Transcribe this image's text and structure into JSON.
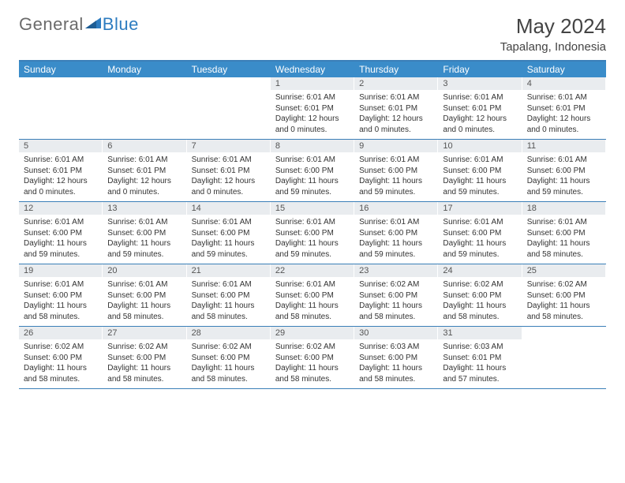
{
  "logo": {
    "text1": "General",
    "text2": "Blue"
  },
  "title": "May 2024",
  "location": "Tapalang, Indonesia",
  "colors": {
    "header_bg": "#3a8cc9",
    "border": "#3b7fb8",
    "daynum_bg": "#e9ecef",
    "text": "#333333",
    "logo_gray": "#6b6b6b",
    "logo_blue": "#2d7cc0"
  },
  "daynames": [
    "Sunday",
    "Monday",
    "Tuesday",
    "Wednesday",
    "Thursday",
    "Friday",
    "Saturday"
  ],
  "weeks": [
    [
      {
        "n": "",
        "empty": true
      },
      {
        "n": "",
        "empty": true
      },
      {
        "n": "",
        "empty": true
      },
      {
        "n": "1",
        "sr": "Sunrise: 6:01 AM",
        "ss": "Sunset: 6:01 PM",
        "dl": "Daylight: 12 hours and 0 minutes."
      },
      {
        "n": "2",
        "sr": "Sunrise: 6:01 AM",
        "ss": "Sunset: 6:01 PM",
        "dl": "Daylight: 12 hours and 0 minutes."
      },
      {
        "n": "3",
        "sr": "Sunrise: 6:01 AM",
        "ss": "Sunset: 6:01 PM",
        "dl": "Daylight: 12 hours and 0 minutes."
      },
      {
        "n": "4",
        "sr": "Sunrise: 6:01 AM",
        "ss": "Sunset: 6:01 PM",
        "dl": "Daylight: 12 hours and 0 minutes."
      }
    ],
    [
      {
        "n": "5",
        "sr": "Sunrise: 6:01 AM",
        "ss": "Sunset: 6:01 PM",
        "dl": "Daylight: 12 hours and 0 minutes."
      },
      {
        "n": "6",
        "sr": "Sunrise: 6:01 AM",
        "ss": "Sunset: 6:01 PM",
        "dl": "Daylight: 12 hours and 0 minutes."
      },
      {
        "n": "7",
        "sr": "Sunrise: 6:01 AM",
        "ss": "Sunset: 6:01 PM",
        "dl": "Daylight: 12 hours and 0 minutes."
      },
      {
        "n": "8",
        "sr": "Sunrise: 6:01 AM",
        "ss": "Sunset: 6:00 PM",
        "dl": "Daylight: 11 hours and 59 minutes."
      },
      {
        "n": "9",
        "sr": "Sunrise: 6:01 AM",
        "ss": "Sunset: 6:00 PM",
        "dl": "Daylight: 11 hours and 59 minutes."
      },
      {
        "n": "10",
        "sr": "Sunrise: 6:01 AM",
        "ss": "Sunset: 6:00 PM",
        "dl": "Daylight: 11 hours and 59 minutes."
      },
      {
        "n": "11",
        "sr": "Sunrise: 6:01 AM",
        "ss": "Sunset: 6:00 PM",
        "dl": "Daylight: 11 hours and 59 minutes."
      }
    ],
    [
      {
        "n": "12",
        "sr": "Sunrise: 6:01 AM",
        "ss": "Sunset: 6:00 PM",
        "dl": "Daylight: 11 hours and 59 minutes."
      },
      {
        "n": "13",
        "sr": "Sunrise: 6:01 AM",
        "ss": "Sunset: 6:00 PM",
        "dl": "Daylight: 11 hours and 59 minutes."
      },
      {
        "n": "14",
        "sr": "Sunrise: 6:01 AM",
        "ss": "Sunset: 6:00 PM",
        "dl": "Daylight: 11 hours and 59 minutes."
      },
      {
        "n": "15",
        "sr": "Sunrise: 6:01 AM",
        "ss": "Sunset: 6:00 PM",
        "dl": "Daylight: 11 hours and 59 minutes."
      },
      {
        "n": "16",
        "sr": "Sunrise: 6:01 AM",
        "ss": "Sunset: 6:00 PM",
        "dl": "Daylight: 11 hours and 59 minutes."
      },
      {
        "n": "17",
        "sr": "Sunrise: 6:01 AM",
        "ss": "Sunset: 6:00 PM",
        "dl": "Daylight: 11 hours and 59 minutes."
      },
      {
        "n": "18",
        "sr": "Sunrise: 6:01 AM",
        "ss": "Sunset: 6:00 PM",
        "dl": "Daylight: 11 hours and 58 minutes."
      }
    ],
    [
      {
        "n": "19",
        "sr": "Sunrise: 6:01 AM",
        "ss": "Sunset: 6:00 PM",
        "dl": "Daylight: 11 hours and 58 minutes."
      },
      {
        "n": "20",
        "sr": "Sunrise: 6:01 AM",
        "ss": "Sunset: 6:00 PM",
        "dl": "Daylight: 11 hours and 58 minutes."
      },
      {
        "n": "21",
        "sr": "Sunrise: 6:01 AM",
        "ss": "Sunset: 6:00 PM",
        "dl": "Daylight: 11 hours and 58 minutes."
      },
      {
        "n": "22",
        "sr": "Sunrise: 6:01 AM",
        "ss": "Sunset: 6:00 PM",
        "dl": "Daylight: 11 hours and 58 minutes."
      },
      {
        "n": "23",
        "sr": "Sunrise: 6:02 AM",
        "ss": "Sunset: 6:00 PM",
        "dl": "Daylight: 11 hours and 58 minutes."
      },
      {
        "n": "24",
        "sr": "Sunrise: 6:02 AM",
        "ss": "Sunset: 6:00 PM",
        "dl": "Daylight: 11 hours and 58 minutes."
      },
      {
        "n": "25",
        "sr": "Sunrise: 6:02 AM",
        "ss": "Sunset: 6:00 PM",
        "dl": "Daylight: 11 hours and 58 minutes."
      }
    ],
    [
      {
        "n": "26",
        "sr": "Sunrise: 6:02 AM",
        "ss": "Sunset: 6:00 PM",
        "dl": "Daylight: 11 hours and 58 minutes."
      },
      {
        "n": "27",
        "sr": "Sunrise: 6:02 AM",
        "ss": "Sunset: 6:00 PM",
        "dl": "Daylight: 11 hours and 58 minutes."
      },
      {
        "n": "28",
        "sr": "Sunrise: 6:02 AM",
        "ss": "Sunset: 6:00 PM",
        "dl": "Daylight: 11 hours and 58 minutes."
      },
      {
        "n": "29",
        "sr": "Sunrise: 6:02 AM",
        "ss": "Sunset: 6:00 PM",
        "dl": "Daylight: 11 hours and 58 minutes."
      },
      {
        "n": "30",
        "sr": "Sunrise: 6:03 AM",
        "ss": "Sunset: 6:00 PM",
        "dl": "Daylight: 11 hours and 58 minutes."
      },
      {
        "n": "31",
        "sr": "Sunrise: 6:03 AM",
        "ss": "Sunset: 6:01 PM",
        "dl": "Daylight: 11 hours and 57 minutes."
      },
      {
        "n": "",
        "empty": true
      }
    ]
  ]
}
